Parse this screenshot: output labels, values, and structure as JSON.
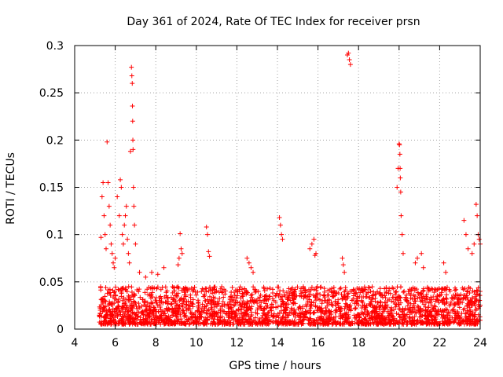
{
  "chart_data": {
    "type": "scatter",
    "title": "Day 361 of 2024, Rate Of TEC Index for receiver prsn",
    "xlabel": "GPS time / hours",
    "ylabel": "ROTI / TECUs",
    "xlim": [
      4,
      24
    ],
    "ylim": [
      0,
      0.3
    ],
    "xticks": [
      4,
      6,
      8,
      10,
      12,
      14,
      16,
      18,
      20,
      22,
      24
    ],
    "yticks": [
      0,
      0.05,
      0.1,
      0.15,
      0.2,
      0.25,
      0.3
    ],
    "grid": true,
    "marker": "+",
    "color": "#ff0000",
    "baseline": {
      "description": "dense band of ROTI values between about 0.005 and 0.05 TECUs from about 5.2 h to 24 h",
      "x_start": 5.2,
      "x_end": 24.0,
      "typical_range": [
        0.005,
        0.045
      ]
    },
    "series": [
      {
        "name": "prsn",
        "x": [
          5.3,
          5.35,
          5.4,
          5.45,
          5.5,
          5.55,
          5.6,
          5.65,
          5.7,
          5.75,
          5.8,
          5.85,
          5.9,
          5.95,
          6.0,
          6.1,
          6.2,
          6.25,
          6.3,
          6.35,
          6.4,
          6.45,
          6.5,
          6.55,
          6.6,
          6.65,
          6.7,
          6.75,
          6.8,
          6.82,
          6.84,
          6.85,
          6.86,
          6.87,
          6.88,
          6.9,
          6.92,
          6.95,
          7.0,
          7.2,
          7.5,
          7.8,
          8.1,
          8.4,
          9.1,
          9.15,
          9.2,
          9.25,
          9.3,
          10.5,
          10.55,
          10.6,
          10.65,
          12.5,
          12.6,
          12.7,
          12.8,
          14.1,
          14.15,
          14.2,
          14.25,
          15.6,
          15.7,
          15.8,
          15.85,
          15.9,
          17.2,
          17.25,
          17.3,
          17.45,
          17.5,
          17.55,
          17.6,
          19.9,
          19.95,
          20.0,
          20.02,
          20.04,
          20.05,
          20.06,
          20.08,
          20.1,
          20.15,
          20.2,
          20.8,
          20.9,
          21.1,
          21.2,
          22.2,
          22.3,
          23.2,
          23.3,
          23.4,
          23.6,
          23.7,
          23.8,
          23.85,
          23.9,
          23.95,
          24.0
        ],
        "y": [
          0.097,
          0.14,
          0.155,
          0.12,
          0.1,
          0.085,
          0.198,
          0.155,
          0.13,
          0.11,
          0.09,
          0.08,
          0.07,
          0.065,
          0.075,
          0.14,
          0.12,
          0.158,
          0.15,
          0.1,
          0.09,
          0.11,
          0.12,
          0.13,
          0.095,
          0.08,
          0.07,
          0.188,
          0.277,
          0.268,
          0.26,
          0.236,
          0.22,
          0.2,
          0.19,
          0.15,
          0.13,
          0.11,
          0.09,
          0.06,
          0.055,
          0.06,
          0.058,
          0.065,
          0.068,
          0.075,
          0.101,
          0.085,
          0.08,
          0.108,
          0.1,
          0.082,
          0.077,
          0.075,
          0.07,
          0.065,
          0.06,
          0.118,
          0.11,
          0.1,
          0.095,
          0.085,
          0.09,
          0.095,
          0.078,
          0.08,
          0.075,
          0.068,
          0.06,
          0.29,
          0.292,
          0.285,
          0.28,
          0.15,
          0.17,
          0.196,
          0.195,
          0.185,
          0.17,
          0.16,
          0.145,
          0.12,
          0.1,
          0.08,
          0.07,
          0.075,
          0.08,
          0.065,
          0.07,
          0.06,
          0.115,
          0.1,
          0.085,
          0.08,
          0.09,
          0.132,
          0.12,
          0.1,
          0.095,
          0.09
        ]
      }
    ]
  }
}
